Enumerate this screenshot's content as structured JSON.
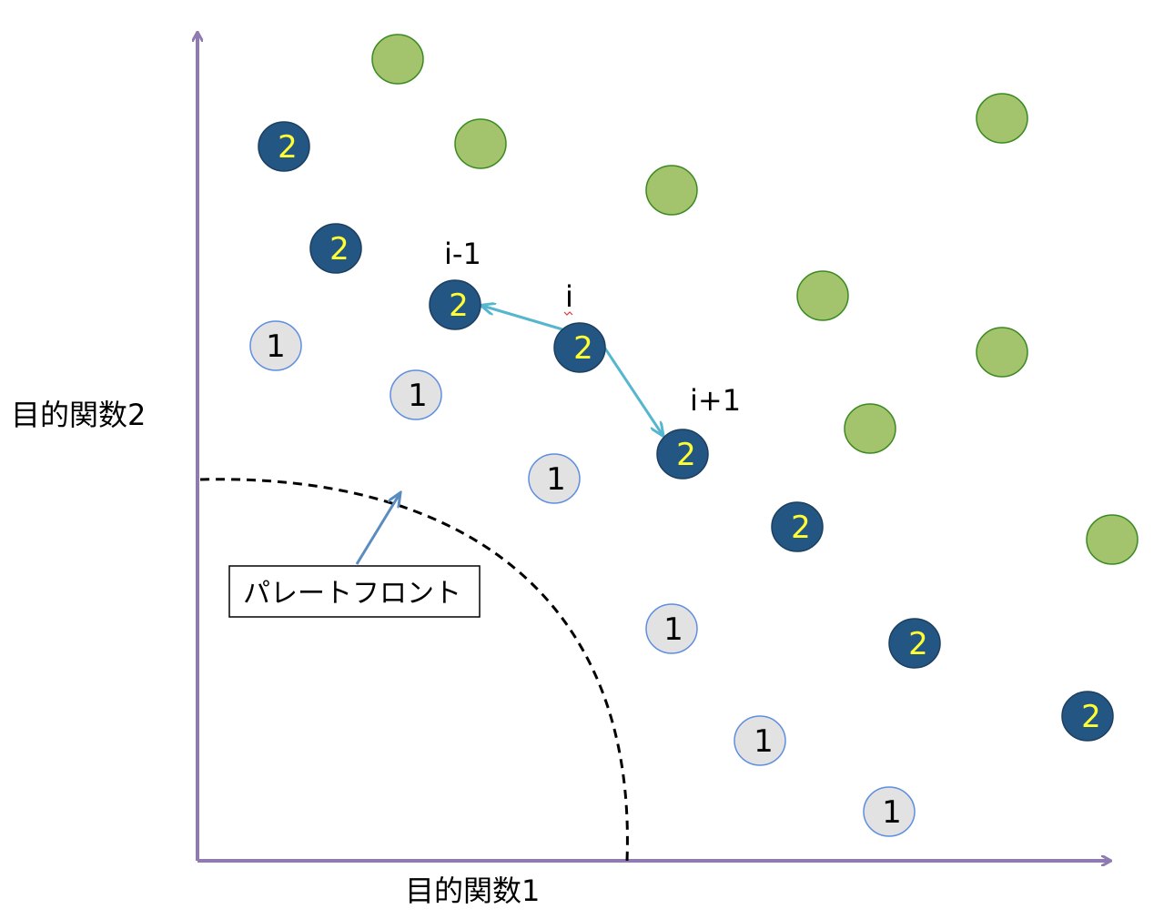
{
  "axes": {
    "x_label": "目的関数1",
    "y_label": "目的関数2",
    "color": "#8f7bb1"
  },
  "front": {
    "label": "パレートフロント",
    "curve_color": "#000000",
    "pointer_color": "#5b8cc0"
  },
  "legend_colors": {
    "rank1_fill": "#e2e2e2",
    "rank1_stroke": "#5f8ee0",
    "rank1_text": "#000000",
    "rank2_fill": "#245683",
    "rank2_stroke": "#1c3f60",
    "rank2_text": "#ffff33",
    "other_fill": "#a3c36c",
    "other_stroke": "#3a8a22",
    "neighbor_arrow": "#57b6cf"
  },
  "points": {
    "rank1": [
      {
        "label": "1"
      },
      {
        "label": "1"
      },
      {
        "label": "1"
      },
      {
        "label": "1"
      },
      {
        "label": "1"
      },
      {
        "label": "1"
      }
    ],
    "rank2": [
      {
        "label": "2"
      },
      {
        "label": "2"
      },
      {
        "label": "2"
      },
      {
        "label": "2"
      },
      {
        "label": "2"
      },
      {
        "label": "2"
      },
      {
        "label": "2"
      },
      {
        "label": "2"
      }
    ],
    "other_count": 8
  },
  "neighbors": {
    "prev_label": "i-1",
    "current_label": "i",
    "next_label": "i+1"
  }
}
